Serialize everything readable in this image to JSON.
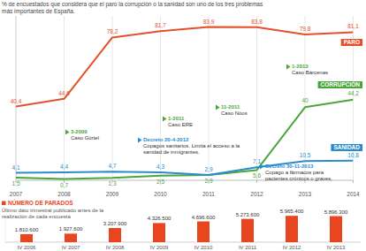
{
  "chart_data": [
    {
      "type": "line",
      "title": "% de encuestados que considera que el paro la corrupción o la sanidad son uno de los tres problemas más importantes de España.",
      "x": [
        2007,
        2008,
        2009,
        2010,
        2011,
        2012,
        2013,
        2014
      ],
      "xlim": [
        2007,
        2014
      ],
      "xticks": [
        2007,
        2008,
        2009,
        2010,
        2011,
        2012,
        2013,
        2014
      ],
      "ylim": [
        0,
        90
      ],
      "yticks": [],
      "grid": true,
      "tick_labels": "x",
      "data_labels": true,
      "series": [
        {
          "name": "PARO",
          "color": "#e5502b",
          "values": [
            40.4,
            44.6,
            78.2,
            81.7,
            83.9,
            83.8,
            79.8,
            81.1
          ],
          "value_labels": [
            "40,4",
            "44,6",
            "78,2",
            "81,7",
            "83,9",
            "83,8",
            "79,8",
            "81,1"
          ]
        },
        {
          "name": "CORRUPCIÓN",
          "color": "#4aa63a",
          "values": [
            1.5,
            0.7,
            1.3,
            2.5,
            2.9,
            5.6,
            40,
            44.2
          ],
          "value_labels": [
            "1,5",
            "0,7",
            "1,3",
            "2,5",
            "2,9",
            "5,6",
            "40",
            "44,2"
          ]
        },
        {
          "name": "SANIDAD",
          "color": "#2a8ccc",
          "values": [
            4.1,
            4.4,
            4.7,
            4.3,
            2.9,
            7.1,
            10.5,
            10.8
          ],
          "value_labels": [
            "4,1",
            "4,4",
            "4,7",
            "4,3",
            "2,9",
            "7,1",
            "10,5",
            "10,8"
          ]
        }
      ],
      "annotations": [
        {
          "label": "3-2009",
          "text": "Caso Gürtel",
          "color": "#4aa63a"
        },
        {
          "label": "1-2011",
          "text": "Caso ERE",
          "color": "#4aa63a"
        },
        {
          "label": "11-2011",
          "text": "Caso Nóos",
          "color": "#4aa63a"
        },
        {
          "label": "1-2013",
          "text": "Caso Bárcenas",
          "color": "#4aa63a"
        },
        {
          "label": "Decreto 20-4-2012",
          "text": "Copagos sanitarios. Limita el acceso a la sanidad de inmigrantes.",
          "color": "#2a8ccc"
        },
        {
          "label": "Decreto 30-11-2013",
          "text": "Copago a fármacos para pacientes crónicos o graves.",
          "color": "#2a8ccc"
        }
      ]
    },
    {
      "type": "bar",
      "title": "NÚMERO DE PARADOS",
      "subtitle": "Último dato trimestral publicado antes de la realización de cada encuesta",
      "categories": [
        "IV 2006",
        "IV 2007",
        "IV 2008",
        "IV 2009",
        "IV 2010",
        "IV 2011",
        "IV 2012",
        "IV 2013"
      ],
      "values": [
        1810600,
        1927600,
        3207900,
        4326500,
        4696600,
        5273600,
        5965400,
        5896300
      ],
      "value_labels": [
        "1.810.600",
        "1.927.600",
        "3.207.900",
        "4.326.500",
        "4.696.600",
        "5.273.600",
        "5.965.400",
        "5.896.300"
      ],
      "color": "#e8461e",
      "ylim": [
        0,
        6000000
      ],
      "tick_labels": "x",
      "data_labels": true
    }
  ]
}
